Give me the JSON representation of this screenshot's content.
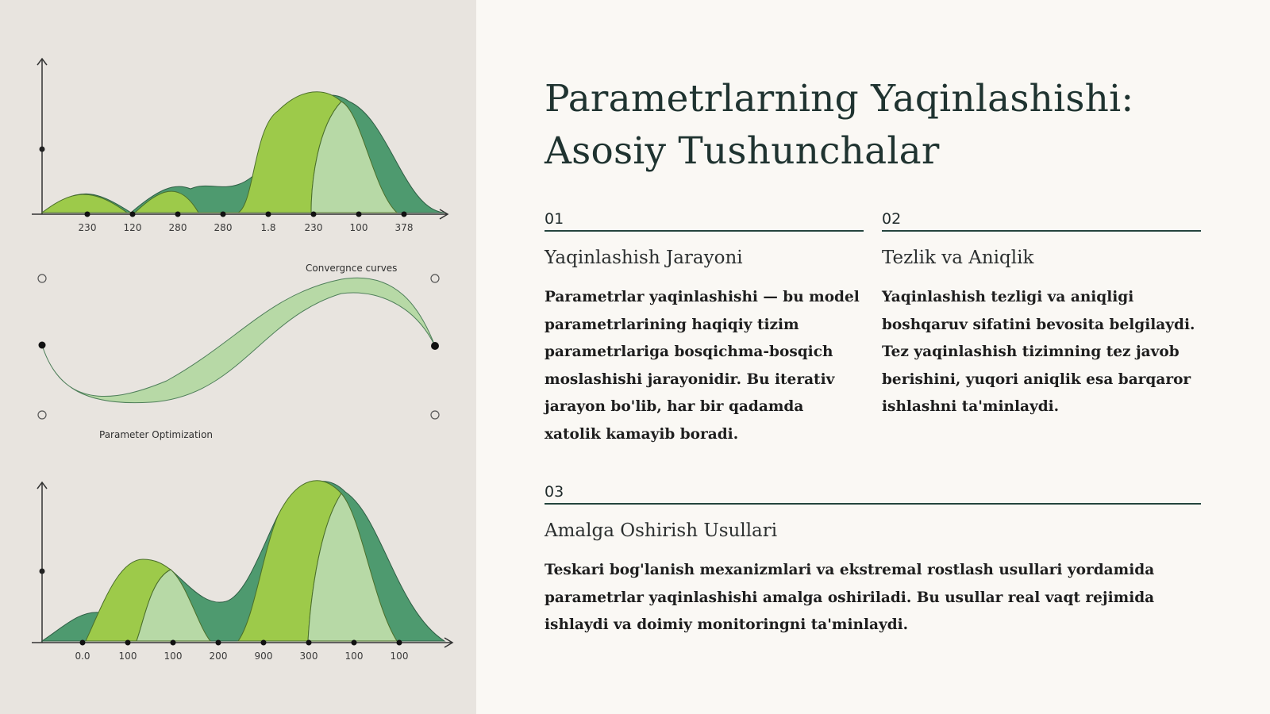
{
  "title": "Parametrlarning Yaqinlashishi: Asosiy Tushunchalar",
  "sections": [
    {
      "num": "01",
      "heading": "Yaqinlashish Jarayoni",
      "body": "Parametrlar yaqinlashishi — bu model parametrlarining haqiqiy tizim parametrlariga bosqichma-bosqich moslashishi jarayonidir. Bu iterativ jarayon bo'lib, har bir qadamda xatolik kamayib boradi."
    },
    {
      "num": "02",
      "heading": "Tezlik va Aniqlik",
      "body": "Yaqinlashish tezligi va aniqligi boshqaruv sifatini bevosita belgilaydi. Tez yaqinlashish tizimning tez javob berishini, yuqori aniqlik esa barqaror ishlashni ta'minlaydi."
    },
    {
      "num": "03",
      "heading": "Amalga Oshirish Usullari",
      "body": "Teskari bog'lanish mexanizmlari va ekstremal rostlash usullari yordamida parametrlar yaqinlashishi amalga oshiriladi. Bu usullar real vaqt rejimida ishlaydi va doimiy monitoringni ta'minlaydi."
    }
  ],
  "illustration": {
    "top_ticks": [
      "230",
      "120",
      "280",
      "280",
      "1.8",
      "230",
      "100",
      "378"
    ],
    "middle_label_top": "Convergnce curves",
    "middle_label_bottom": "Parameter Optimization",
    "bottom_ticks": [
      "0.0",
      "100",
      "100",
      "200",
      "900",
      "300",
      "100",
      "100"
    ]
  },
  "colors": {
    "panel_bg": "#e8e4df",
    "page_bg": "#faf8f4",
    "dark_green": "#4e9a6f",
    "lime_green": "#9dca4a",
    "pale_green": "#b7d9a6",
    "rule": "#24443d"
  }
}
